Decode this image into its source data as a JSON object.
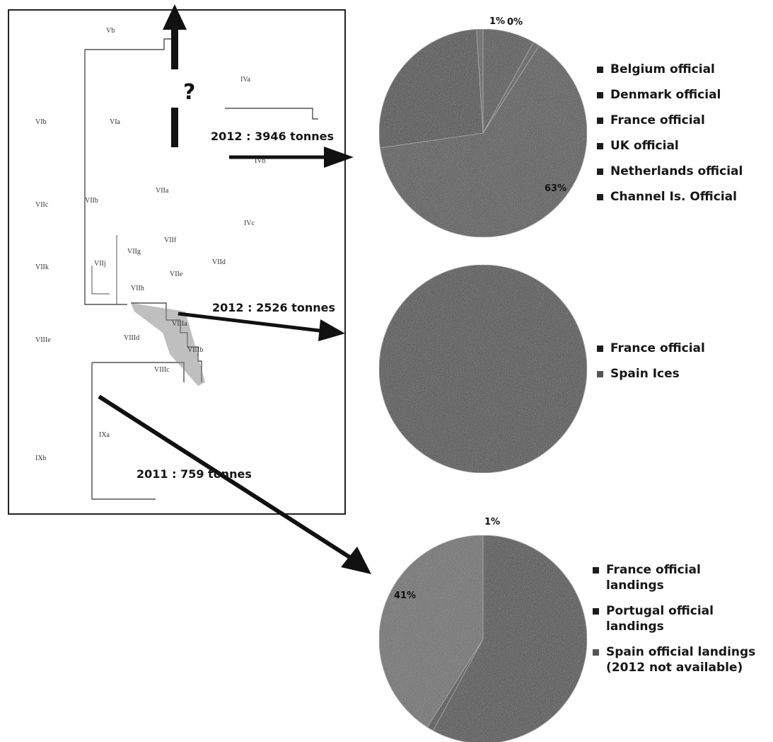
{
  "map": {
    "areas": [
      "Vb",
      "IVa",
      "VIb",
      "VIa",
      "IVb",
      "VIIc",
      "VIIb",
      "VIIa",
      "IVc",
      "VIIf",
      "VIIg",
      "VIIk",
      "VIIj",
      "VIIe",
      "VIId",
      "VIIh",
      "VIIIa",
      "VIIId",
      "VIIIe",
      "VIIIb",
      "VIIIc",
      "IXa",
      "IXb"
    ],
    "question_mark": "?",
    "annotations": [
      "2012 : 3946 tonnes",
      "2012 : 2526 tonnes",
      "2011 : 759 tonnes"
    ]
  },
  "chart_data": [
    {
      "type": "pie",
      "annotation": "2012 : 3946 tonnes",
      "labels": [
        "Belgium official",
        "Denmark official",
        "France official",
        "UK official",
        "Netherlands official",
        "Channel Is. Official"
      ],
      "values": [
        8,
        1,
        63,
        26,
        1,
        0
      ],
      "slice_labels": [
        "",
        "1%",
        "63%",
        "",
        "",
        "0%"
      ],
      "legend_position": "right",
      "colors": [
        "#2b2b2b",
        "#3a3a3a",
        "#333333",
        "#1f1f1f",
        "#444444",
        "#3f3f3f"
      ]
    },
    {
      "type": "pie",
      "annotation": "2012 : 2526 tonnes",
      "labels": [
        "France official",
        "Spain Ices"
      ],
      "values": [
        100,
        0
      ],
      "slice_labels": [
        "",
        ""
      ],
      "legend_position": "right",
      "colors": [
        "#262626",
        "#4a4a4a"
      ]
    },
    {
      "type": "pie",
      "annotation": "2011 : 759 tonnes",
      "labels": [
        "France official landings",
        "Portugal official landings",
        "Spain official landings (2012 not available)"
      ],
      "legend_labels": [
        "France official landings",
        "Portugal official landings",
        "Spain official landings (2012 not available)"
      ],
      "values": [
        58,
        1,
        41
      ],
      "slice_labels": [
        "",
        "1%",
        "41%"
      ],
      "legend_position": "right",
      "colors": [
        "#242424",
        "#1a1a1a",
        "#575757"
      ]
    }
  ]
}
